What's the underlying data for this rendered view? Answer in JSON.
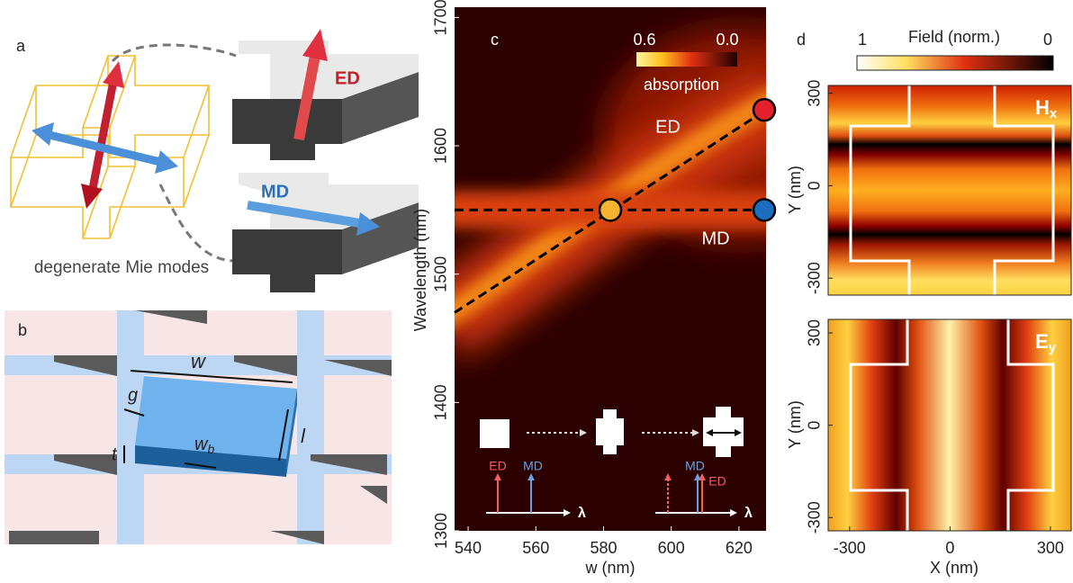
{
  "figure": {
    "panel_a": {
      "label": "a",
      "ed": "ED",
      "md": "MD",
      "caption": "degenerate Mie modes"
    },
    "panel_b": {
      "label": "b",
      "w": "w",
      "g": "g",
      "t": "t",
      "wb": {
        "main": "w",
        "sub": "b"
      },
      "l": "l"
    }
  },
  "chart_data": [
    {
      "type": "heatmap",
      "panel_label": "c",
      "xlabel": "w (nm)",
      "ylabel": "Wavelength (nm)",
      "xlim": [
        536,
        628
      ],
      "ylim": [
        1300,
        1708
      ],
      "xticks": [
        540,
        560,
        580,
        600,
        620
      ],
      "yticks": [
        1300,
        1400,
        1500,
        1600,
        1700
      ],
      "colorbar": {
        "label": "absorption",
        "ticks": [
          0.6,
          {
            "value": 0,
            "label": "0.0"
          }
        ]
      },
      "series": [
        {
          "name": "ED",
          "color": "#000000",
          "x": [
            536,
            628
          ],
          "values": [
            1470,
            1628
          ]
        },
        {
          "name": "MD",
          "color": "#000000",
          "x": [
            536,
            628
          ],
          "values": [
            1550,
            1550
          ]
        }
      ],
      "points": [
        {
          "x": 582,
          "y": 1550,
          "color": "#f4b431"
        },
        {
          "x": 628,
          "y": 1628,
          "color": "#e3202b"
        },
        {
          "x": 628,
          "y": 1550,
          "color": "#1c6dbf"
        }
      ],
      "insets": [
        {
          "labels": [
            "ED",
            "MD"
          ],
          "axis": "λ"
        },
        {
          "labels": [
            "MD",
            "ED"
          ],
          "axis": "λ"
        }
      ]
    },
    {
      "type": "heatmap",
      "panel_label": "d",
      "title": {
        "main": "H",
        "sub": "x"
      },
      "ylabel": "Y (nm)",
      "xlim": [
        -364,
        362
      ],
      "ylim": [
        -355,
        325
      ],
      "yticks": [
        -300,
        0,
        300
      ],
      "colorbar": {
        "label": "Field (norm.)",
        "ticks": [
          1,
          0
        ]
      }
    },
    {
      "type": "heatmap",
      "title": {
        "main": "E",
        "sub": "y"
      },
      "xlabel": "X (nm)",
      "ylabel": "Y (nm)",
      "xlim": [
        -364,
        362
      ],
      "ylim": [
        -343,
        344
      ],
      "xticks": [
        -300,
        0,
        300
      ],
      "yticks": [
        -300,
        0,
        300
      ]
    }
  ]
}
